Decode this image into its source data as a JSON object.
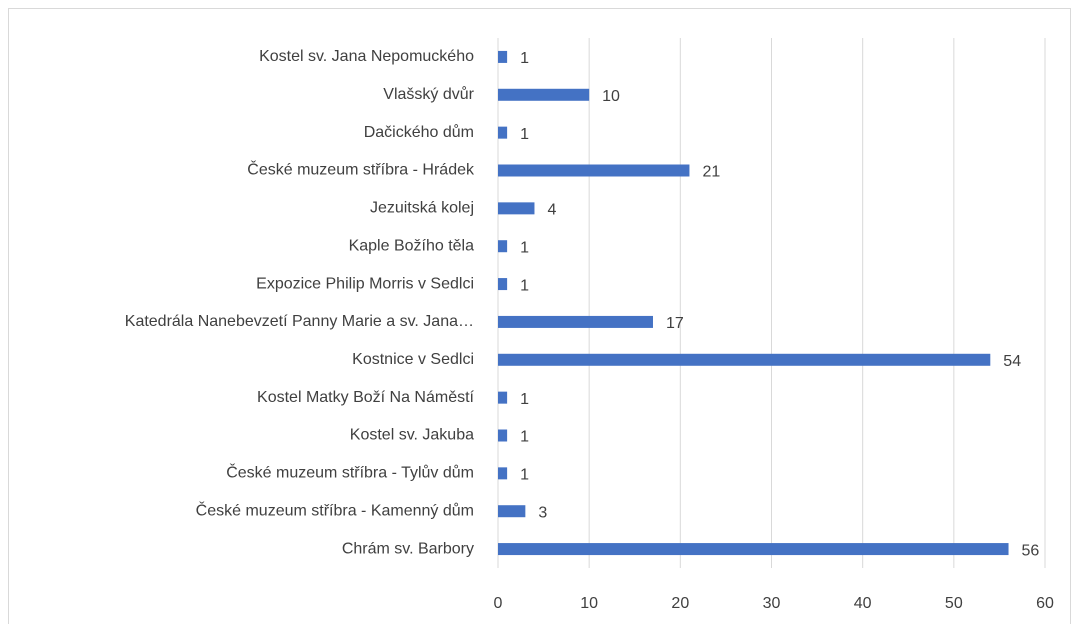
{
  "chart_data": {
    "type": "bar",
    "orientation": "horizontal",
    "categories": [
      "Kostel sv. Jana Nepomuckého",
      "Vlašský dvůr",
      "Dačického dům",
      "České muzeum stříbra - Hrádek",
      "Jezuitská kolej",
      "Kaple Božího těla",
      "Expozice Philip Morris v Sedlci",
      "Katedrála Nanebevzetí Panny Marie a sv. Jana…",
      "Kostnice v Sedlci",
      "Kostel Matky Boží Na Náměstí",
      "Kostel sv. Jakuba",
      "České muzeum stříbra - Tylův dům",
      "České muzeum stříbra - Kamenný dům",
      "Chrám sv. Barbory"
    ],
    "values": [
      1,
      10,
      1,
      21,
      4,
      1,
      1,
      17,
      54,
      1,
      1,
      1,
      3,
      56
    ],
    "color": "#4472c4",
    "xlim": [
      0,
      60
    ],
    "xticks": [
      0,
      10,
      20,
      30,
      40,
      50,
      60
    ],
    "grid": true
  }
}
